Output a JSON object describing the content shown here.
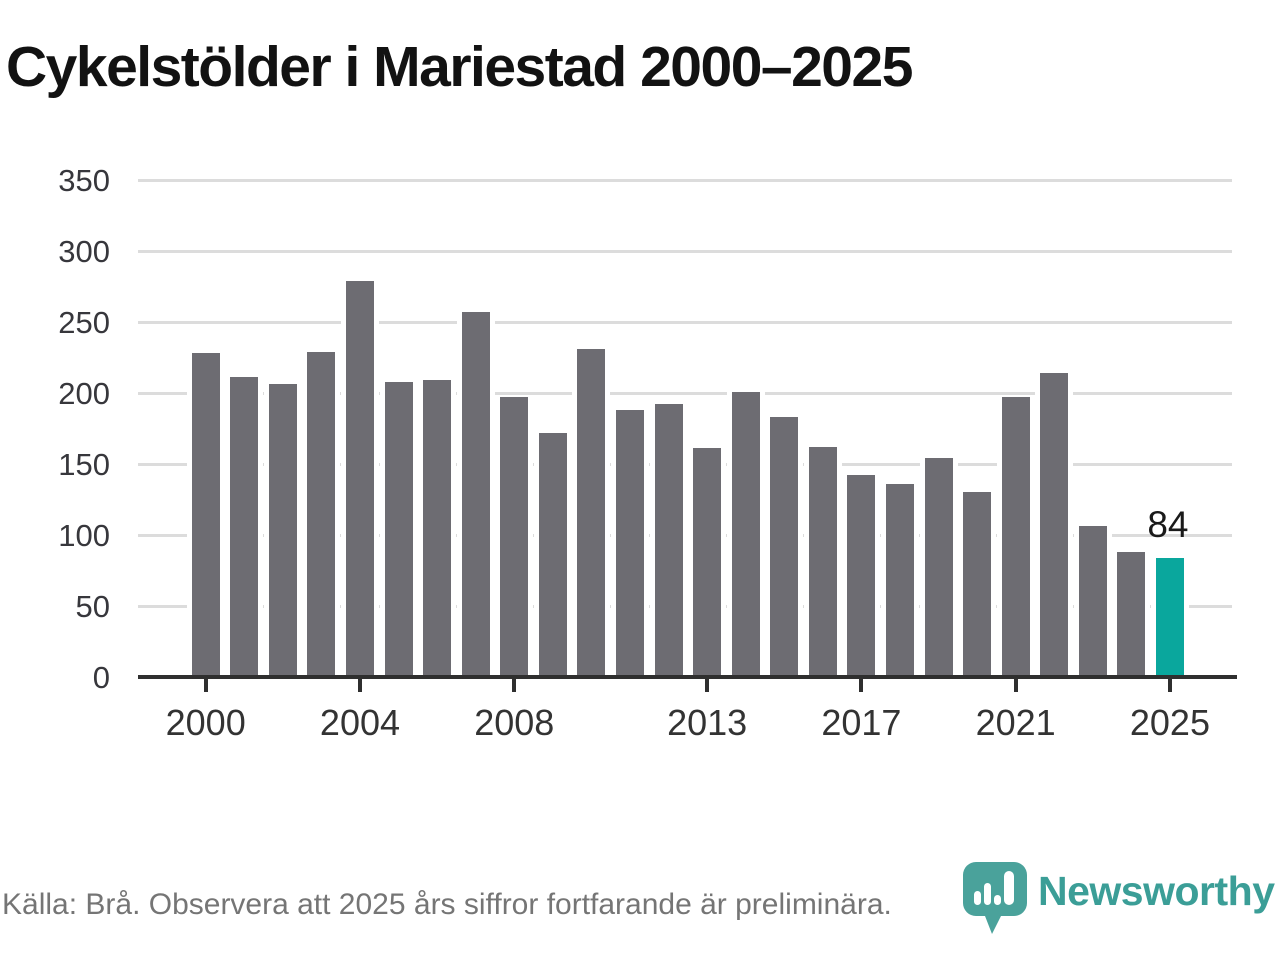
{
  "title": "Cykelstölder i Mariestad 2000–2025",
  "colors": {
    "bar": "#6d6c72",
    "highlight": "#0aa79d",
    "gridline": "#dcdcdc",
    "axis": "#2f2f2f",
    "title_text": "#121212",
    "tick_text": "#37373c",
    "annotation_text": "#1a1a1a",
    "footer_text": "#757575",
    "logo": "#3b9e97"
  },
  "y_axis": {
    "tick_labels": [
      "350",
      "300",
      "250",
      "200",
      "150",
      "100",
      "50",
      "0"
    ]
  },
  "x_axis": {
    "tick_years": [
      2000,
      2004,
      2008,
      2013,
      2017,
      2021,
      2025
    ]
  },
  "annotation": {
    "label": "84",
    "year": 2025
  },
  "footer": {
    "source": "Källa: Brå. Observera att 2025 års siffror fortfarande är preliminära."
  },
  "logo": {
    "wordmark": "Newsworthy",
    "icon": "newsworthy-pin-barchart-icon"
  },
  "chart_data": {
    "type": "bar",
    "title": "Cykelstölder i Mariestad 2000–2025",
    "x": [
      2000,
      2001,
      2002,
      2003,
      2004,
      2005,
      2006,
      2007,
      2008,
      2009,
      2010,
      2011,
      2012,
      2013,
      2014,
      2015,
      2016,
      2017,
      2018,
      2019,
      2020,
      2021,
      2022,
      2023,
      2024,
      2025
    ],
    "values": [
      228,
      211,
      206,
      229,
      279,
      208,
      209,
      257,
      197,
      172,
      231,
      188,
      192,
      161,
      201,
      183,
      162,
      142,
      136,
      154,
      130,
      197,
      214,
      106,
      88,
      84
    ],
    "highlight_x": 2025,
    "data_label": {
      "x": 2025,
      "text": "84"
    },
    "xlabel": "",
    "ylabel": "",
    "ylim": [
      0,
      350
    ],
    "y_tick_step": 50,
    "x_tick_labels": [
      2000,
      2004,
      2008,
      2013,
      2017,
      2021,
      2025
    ],
    "grid": "horizontal",
    "legend": "none",
    "note": "2025 preliminary, highlighted teal"
  }
}
